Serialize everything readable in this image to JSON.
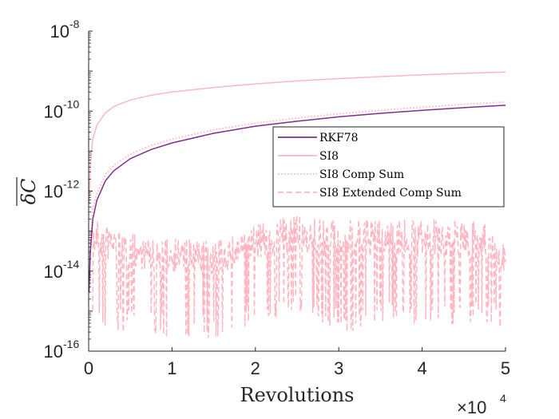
{
  "chart_data": {
    "type": "line",
    "title": "",
    "xlabel": "Revolutions",
    "ylabel": "δC (overline)",
    "x_multiplier_label": "×10",
    "x_multiplier_exp": "4",
    "xlim": [
      0,
      5
    ],
    "ylim_log10": [
      -16,
      -8
    ],
    "yscale": "log",
    "grid": false,
    "x_ticks": [
      0,
      1,
      2,
      3,
      4,
      5
    ],
    "x_tick_labels": [
      "0",
      "1",
      "2",
      "3",
      "4",
      "5"
    ],
    "y_ticks_log10": [
      -16,
      -14,
      -12,
      -10,
      -8
    ],
    "y_tick_base": "10",
    "y_tick_exps": [
      "-16",
      "-14",
      "-12",
      "-10",
      "-8"
    ],
    "legend_position": "center-right",
    "series": [
      {
        "name": "RKF78",
        "color": "#7e2f8e",
        "style": "solid",
        "x": [
          0.005,
          0.02,
          0.05,
          0.1,
          0.2,
          0.3,
          0.5,
          0.75,
          1,
          1.5,
          2,
          2.5,
          3,
          3.5,
          4,
          4.5,
          5
        ],
        "y": [
          3e-15,
          3e-14,
          2e-13,
          6e-13,
          1.8e-12,
          3.2e-12,
          6.5e-12,
          1.1e-11,
          1.6e-11,
          2.8e-11,
          4.2e-11,
          5.6e-11,
          7.2e-11,
          8.8e-11,
          1.05e-10,
          1.22e-10,
          1.4e-10
        ]
      },
      {
        "name": "SI8",
        "color": "#ffb6c1",
        "style": "solid",
        "x": [
          0.005,
          0.02,
          0.05,
          0.1,
          0.2,
          0.3,
          0.5,
          0.75,
          1,
          1.5,
          2,
          2.5,
          3,
          3.5,
          4,
          4.5,
          5
        ],
        "y": [
          5e-13,
          5e-12,
          2e-11,
          4.5e-11,
          9e-11,
          1.3e-10,
          1.9e-10,
          2.5e-10,
          3e-10,
          3.9e-10,
          4.8e-10,
          5.7e-10,
          6.5e-10,
          7.3e-10,
          8.1e-10,
          8.8e-10,
          9.5e-10
        ]
      },
      {
        "name": "SI8 Comp Sum",
        "color": "#ffb6c1",
        "style": "dotted",
        "x": [
          0.005,
          0.02,
          0.05,
          0.1,
          0.2,
          0.3,
          0.5,
          0.75,
          1,
          1.5,
          2,
          2.5,
          3,
          3.5,
          4,
          4.5,
          5
        ],
        "y": [
          5e-15,
          6e-14,
          3.5e-13,
          9e-13,
          2.6e-12,
          4.4e-12,
          8.5e-12,
          1.4e-11,
          2e-11,
          3.4e-11,
          5e-11,
          6.7e-11,
          8.6e-11,
          1.05e-10,
          1.26e-10,
          1.48e-10,
          1.7e-10
        ]
      },
      {
        "name": "SI8 Extended Comp Sum",
        "color": "#ffb6c1",
        "style": "dashed",
        "x": [
          0.05,
          0.1,
          0.2,
          0.3,
          0.5,
          0.75,
          1.0,
          1.25,
          1.5,
          1.75,
          2.0,
          2.25,
          2.5,
          2.75,
          3.0,
          3.25,
          3.5,
          3.75,
          4.0,
          4.25,
          4.5,
          4.75,
          5.0
        ],
        "y_envelope_upper": [
          1.5e-13,
          2e-13,
          1.5e-13,
          1.5e-13,
          1e-13,
          6e-14,
          8e-14,
          6e-14,
          6e-14,
          8e-14,
          1.5e-13,
          2e-13,
          2.5e-13,
          2e-13,
          2e-13,
          2e-13,
          2e-13,
          2e-13,
          2e-13,
          2e-13,
          2e-13,
          1.5e-13,
          5e-14
        ],
        "y_envelope_lower": [
          3e-16,
          5e-16,
          3e-16,
          3e-16,
          3e-16,
          3e-16,
          2e-16,
          2e-16,
          2e-16,
          3e-16,
          5e-16,
          5e-16,
          1e-15,
          5e-16,
          3e-16,
          3e-16,
          5e-16,
          5e-16,
          3e-16,
          4e-16,
          4e-16,
          4e-16,
          4e-16
        ]
      }
    ]
  }
}
